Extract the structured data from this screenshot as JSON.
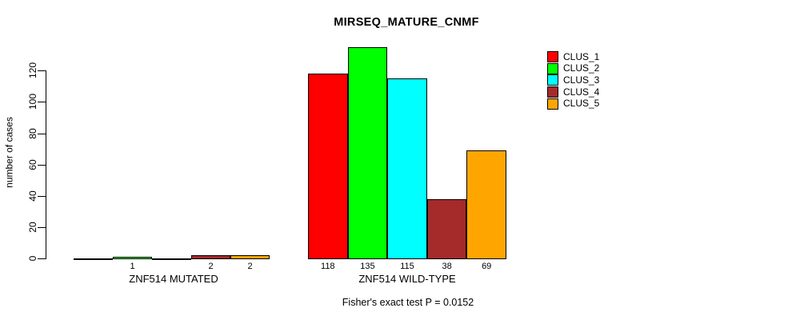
{
  "chart_data": {
    "type": "bar",
    "title": "MIRSEQ_MATURE_CNMF",
    "xlabel": "",
    "ylabel": "number of cases",
    "categories": [
      "ZNF514 MUTATED",
      "ZNF514 WILD-TYPE"
    ],
    "series": [
      {
        "name": "CLUS_1",
        "color": "#ff0000",
        "values": [
          0,
          118
        ]
      },
      {
        "name": "CLUS_2",
        "color": "#00ff00",
        "values": [
          1,
          135
        ]
      },
      {
        "name": "CLUS_3",
        "color": "#00ffff",
        "values": [
          0,
          115
        ]
      },
      {
        "name": "CLUS_4",
        "color": "#a52a2a",
        "values": [
          2,
          38
        ]
      },
      {
        "name": "CLUS_5",
        "color": "#ffa500",
        "values": [
          2,
          69
        ]
      }
    ],
    "bar_value_labels": [
      [
        "",
        "1",
        "",
        "2",
        "2"
      ],
      [
        "118",
        "135",
        "115",
        "38",
        "69"
      ]
    ],
    "yticks": [
      0,
      20,
      40,
      60,
      80,
      100,
      120
    ],
    "ylim": [
      0,
      138
    ],
    "grid": false,
    "legend_position": "top-right",
    "legend_entries": [
      "CLUS_1",
      "CLUS_2",
      "CLUS_3",
      "CLUS_4",
      "CLUS_5"
    ],
    "annotation": "Fisher's exact test P = 0.0152"
  }
}
